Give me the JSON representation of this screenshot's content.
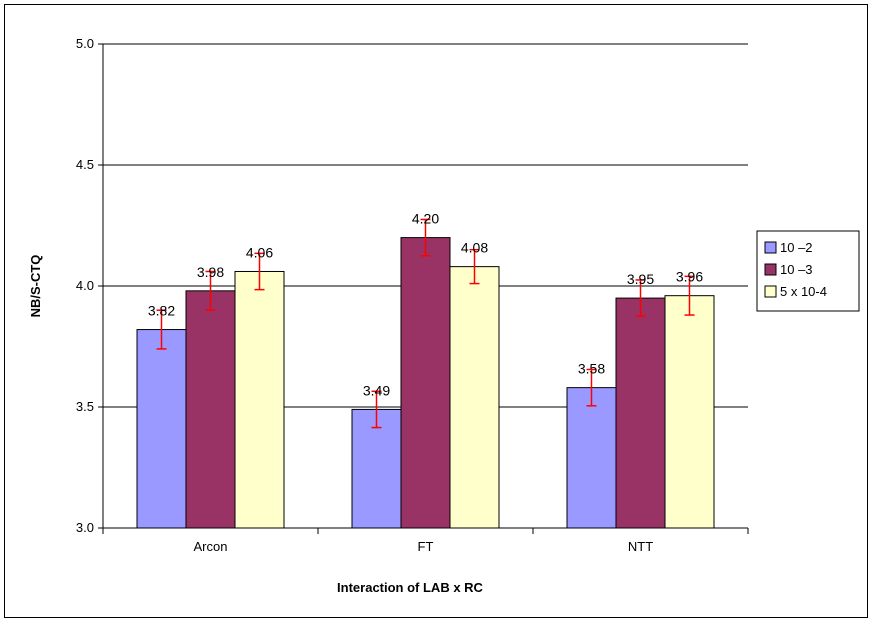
{
  "chart_data": {
    "type": "bar",
    "xlabel": "Interaction of LAB x RC",
    "ylabel": "NB/S-CTQ",
    "ylim": [
      3.0,
      5.0
    ],
    "yticks": [
      "3.0",
      "3.5",
      "4.0",
      "4.5",
      "5.0"
    ],
    "grid": true,
    "legend_position": "right",
    "categories": [
      "Arcon",
      "FT",
      "NTT"
    ],
    "series": [
      {
        "name": "10 –2",
        "color": "#9999ff",
        "values": [
          3.82,
          3.49,
          3.58
        ],
        "labels": [
          "3.82",
          "3.49",
          "3.58"
        ],
        "error": [
          0.08,
          0.075,
          0.075
        ]
      },
      {
        "name": "10 –3",
        "color": "#993366",
        "values": [
          3.98,
          4.2,
          3.95
        ],
        "labels": [
          "3.98",
          "4.20",
          "3.95"
        ],
        "error": [
          0.08,
          0.075,
          0.075
        ]
      },
      {
        "name": "5 x 10-4",
        "color": "#ffffcc",
        "values": [
          4.06,
          4.08,
          3.96
        ],
        "labels": [
          "4.06",
          "4.08",
          "3.96"
        ],
        "error": [
          0.075,
          0.07,
          0.08
        ]
      }
    ],
    "error_bar_color": "#ff0000"
  }
}
